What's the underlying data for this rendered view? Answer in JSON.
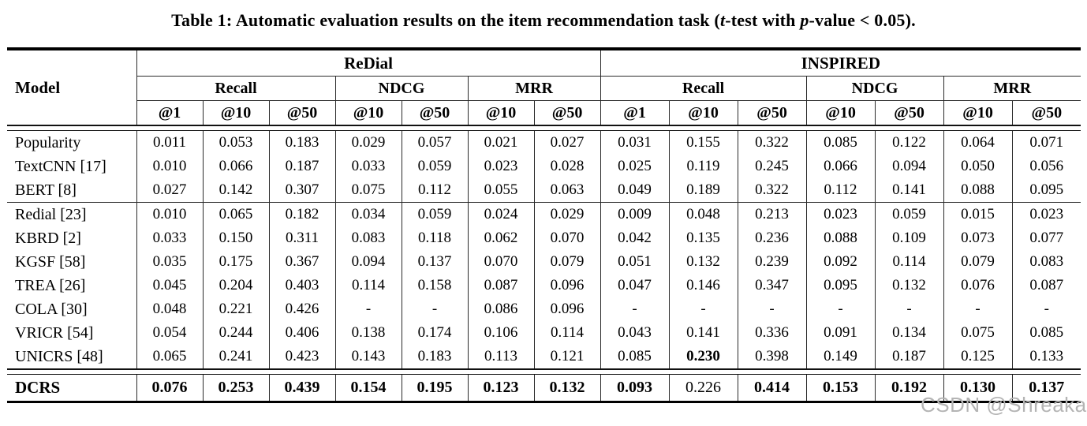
{
  "title": {
    "part1": "Table 1: Automatic evaluation results on the item recommendation task (",
    "t_italic": "t",
    "part2": "-test with ",
    "p_italic": "p",
    "part3": "-value < 0.05)."
  },
  "watermark": "CSDN @Shreakan",
  "table": {
    "model_header": "Model",
    "groups": [
      "ReDial",
      "INSPIRED"
    ],
    "metrics": [
      "Recall",
      "NDCG",
      "MRR"
    ],
    "subcols": [
      "@1",
      "@10",
      "@50",
      "@10",
      "@50",
      "@10",
      "@50"
    ],
    "body_groups": [
      {
        "rows": [
          {
            "name": "Popularity",
            "values": [
              "0.011",
              "0.053",
              "0.183",
              "0.029",
              "0.057",
              "0.021",
              "0.027",
              "0.031",
              "0.155",
              "0.322",
              "0.085",
              "0.122",
              "0.064",
              "0.071"
            ]
          },
          {
            "name": "TextCNN [17]",
            "values": [
              "0.010",
              "0.066",
              "0.187",
              "0.033",
              "0.059",
              "0.023",
              "0.028",
              "0.025",
              "0.119",
              "0.245",
              "0.066",
              "0.094",
              "0.050",
              "0.056"
            ]
          },
          {
            "name": "BERT [8]",
            "values": [
              "0.027",
              "0.142",
              "0.307",
              "0.075",
              "0.112",
              "0.055",
              "0.063",
              "0.049",
              "0.189",
              "0.322",
              "0.112",
              "0.141",
              "0.088",
              "0.095"
            ]
          }
        ]
      },
      {
        "rows": [
          {
            "name": "Redial [23]",
            "values": [
              "0.010",
              "0.065",
              "0.182",
              "0.034",
              "0.059",
              "0.024",
              "0.029",
              "0.009",
              "0.048",
              "0.213",
              "0.023",
              "0.059",
              "0.015",
              "0.023"
            ]
          },
          {
            "name": "KBRD [2]",
            "values": [
              "0.033",
              "0.150",
              "0.311",
              "0.083",
              "0.118",
              "0.062",
              "0.070",
              "0.042",
              "0.135",
              "0.236",
              "0.088",
              "0.109",
              "0.073",
              "0.077"
            ]
          },
          {
            "name": "KGSF [58]",
            "values": [
              "0.035",
              "0.175",
              "0.367",
              "0.094",
              "0.137",
              "0.070",
              "0.079",
              "0.051",
              "0.132",
              "0.239",
              "0.092",
              "0.114",
              "0.079",
              "0.083"
            ]
          },
          {
            "name": "TREA [26]",
            "values": [
              "0.045",
              "0.204",
              "0.403",
              "0.114",
              "0.158",
              "0.087",
              "0.096",
              "0.047",
              "0.146",
              "0.347",
              "0.095",
              "0.132",
              "0.076",
              "0.087"
            ]
          },
          {
            "name": "COLA [30]",
            "values": [
              "0.048",
              "0.221",
              "0.426",
              "-",
              "-",
              "0.086",
              "0.096",
              "-",
              "-",
              "-",
              "-",
              "-",
              "-",
              "-"
            ]
          },
          {
            "name": "VRICR [54]",
            "values": [
              "0.054",
              "0.244",
              "0.406",
              "0.138",
              "0.174",
              "0.106",
              "0.114",
              "0.043",
              "0.141",
              "0.336",
              "0.091",
              "0.134",
              "0.075",
              "0.085"
            ]
          },
          {
            "name": "UNICRS [48]",
            "values": [
              "0.065",
              "0.241",
              "0.423",
              "0.143",
              "0.183",
              "0.113",
              "0.121",
              "0.085",
              "0.230",
              "0.398",
              "0.149",
              "0.187",
              "0.125",
              "0.133"
            ],
            "bold": [
              8
            ]
          }
        ]
      }
    ],
    "final_row": {
      "name": "DCRS",
      "values": [
        "0.076",
        "0.253",
        "0.439",
        "0.154",
        "0.195",
        "0.123",
        "0.132",
        "0.093",
        "0.226",
        "0.414",
        "0.153",
        "0.192",
        "0.130",
        "0.137"
      ],
      "regular": [
        8
      ]
    }
  }
}
